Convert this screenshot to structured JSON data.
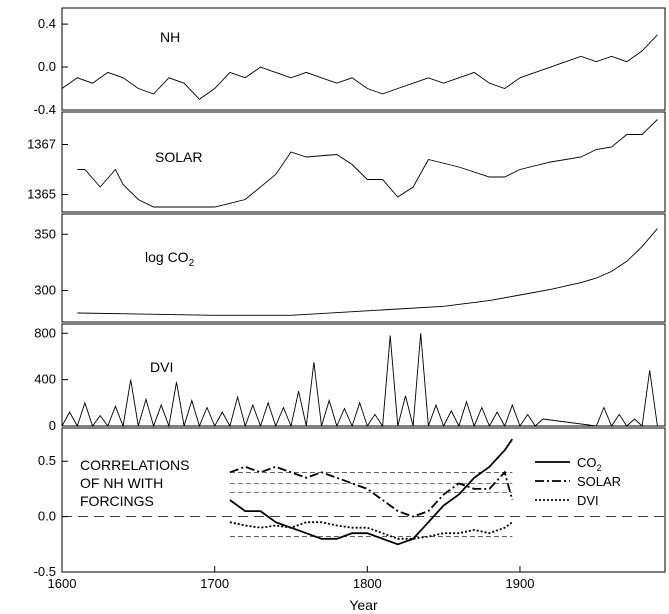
{
  "chart_data": [
    {
      "type": "line",
      "panel_label": "NH",
      "xlim": [
        1600,
        1995
      ],
      "ylim": [
        -0.4,
        0.55
      ],
      "yticks": [
        -0.4,
        0.0,
        0.4
      ],
      "ytick_labels": [
        "-0.4",
        "0.0",
        "0.4"
      ],
      "x": [
        1600,
        1610,
        1620,
        1630,
        1640,
        1650,
        1660,
        1670,
        1680,
        1690,
        1700,
        1710,
        1720,
        1730,
        1740,
        1750,
        1760,
        1770,
        1780,
        1790,
        1800,
        1810,
        1820,
        1830,
        1840,
        1850,
        1860,
        1870,
        1880,
        1890,
        1900,
        1910,
        1920,
        1930,
        1940,
        1950,
        1960,
        1970,
        1980,
        1990
      ],
      "y": [
        -0.2,
        -0.1,
        -0.15,
        -0.05,
        -0.1,
        -0.2,
        -0.25,
        -0.1,
        -0.15,
        -0.3,
        -0.2,
        -0.05,
        -0.1,
        0.0,
        -0.05,
        -0.1,
        -0.05,
        -0.1,
        -0.15,
        -0.1,
        -0.2,
        -0.25,
        -0.2,
        -0.15,
        -0.1,
        -0.15,
        -0.1,
        -0.05,
        -0.15,
        -0.2,
        -0.1,
        -0.05,
        0.0,
        0.05,
        0.1,
        0.05,
        0.1,
        0.05,
        0.15,
        0.3
      ]
    },
    {
      "type": "line",
      "panel_label": "SOLAR",
      "xlim": [
        1600,
        1995
      ],
      "ylim": [
        1364.3,
        1368.3
      ],
      "yticks": [
        1365,
        1367
      ],
      "ytick_labels": [
        "1365",
        "1367"
      ],
      "x": [
        1610,
        1615,
        1625,
        1635,
        1640,
        1650,
        1660,
        1670,
        1690,
        1700,
        1720,
        1740,
        1750,
        1760,
        1780,
        1790,
        1800,
        1810,
        1820,
        1830,
        1840,
        1860,
        1880,
        1890,
        1900,
        1920,
        1940,
        1950,
        1960,
        1970,
        1980,
        1990
      ],
      "y": [
        1366.0,
        1366.0,
        1365.3,
        1366.0,
        1365.4,
        1364.8,
        1364.5,
        1364.5,
        1364.5,
        1364.5,
        1364.8,
        1365.8,
        1366.7,
        1366.5,
        1366.6,
        1366.2,
        1365.6,
        1365.6,
        1364.9,
        1365.3,
        1366.4,
        1366.1,
        1365.7,
        1365.7,
        1366.0,
        1366.3,
        1366.5,
        1366.8,
        1366.9,
        1367.4,
        1367.4,
        1368.0
      ]
    },
    {
      "type": "line",
      "panel_label": "log CO",
      "panel_label_sub": "2",
      "xlim": [
        1600,
        1995
      ],
      "ylim": [
        272,
        368
      ],
      "yticks": [
        300,
        350
      ],
      "ytick_labels": [
        "300",
        "350"
      ],
      "x": [
        1610,
        1700,
        1750,
        1800,
        1850,
        1880,
        1900,
        1920,
        1940,
        1950,
        1960,
        1970,
        1980,
        1990
      ],
      "y": [
        280,
        278,
        278,
        282,
        286,
        291,
        296,
        301,
        307,
        311,
        317,
        326,
        339,
        355
      ]
    },
    {
      "type": "line",
      "panel_label": "DVI",
      "xlim": [
        1600,
        1995
      ],
      "ylim": [
        0,
        880
      ],
      "yticks": [
        0,
        400,
        800
      ],
      "ytick_labels": [
        "0",
        "400",
        "800"
      ],
      "x": [
        1600,
        1605,
        1610,
        1615,
        1620,
        1625,
        1630,
        1635,
        1640,
        1645,
        1650,
        1655,
        1660,
        1665,
        1670,
        1675,
        1680,
        1685,
        1690,
        1695,
        1700,
        1705,
        1710,
        1715,
        1720,
        1725,
        1730,
        1735,
        1740,
        1745,
        1750,
        1755,
        1760,
        1765,
        1770,
        1775,
        1780,
        1785,
        1790,
        1795,
        1800,
        1805,
        1810,
        1815,
        1820,
        1825,
        1830,
        1835,
        1840,
        1845,
        1850,
        1855,
        1860,
        1865,
        1870,
        1875,
        1880,
        1885,
        1890,
        1895,
        1900,
        1905,
        1910,
        1915,
        1950,
        1955,
        1960,
        1965,
        1970,
        1975,
        1980,
        1985,
        1990
      ],
      "y": [
        0,
        120,
        0,
        200,
        0,
        90,
        0,
        170,
        0,
        400,
        0,
        230,
        0,
        180,
        0,
        380,
        0,
        220,
        0,
        160,
        0,
        120,
        0,
        250,
        0,
        180,
        0,
        200,
        0,
        160,
        0,
        300,
        0,
        550,
        0,
        220,
        0,
        150,
        0,
        200,
        0,
        100,
        0,
        780,
        0,
        260,
        0,
        800,
        0,
        180,
        0,
        130,
        0,
        210,
        0,
        160,
        0,
        120,
        0,
        180,
        0,
        100,
        0,
        60,
        0,
        160,
        0,
        100,
        0,
        60,
        0,
        480,
        0
      ]
    },
    {
      "type": "line",
      "panel_label": "CORRELATIONS OF NH WITH FORCINGS",
      "panel_label_lines": [
        "CORRELATIONS",
        "OF NH WITH",
        "FORCINGS"
      ],
      "xlim": [
        1600,
        1995
      ],
      "ylim": [
        -0.5,
        0.8
      ],
      "yticks": [
        -0.5,
        0.0,
        0.5
      ],
      "ytick_labels": [
        "-0.5",
        "0.0",
        "0.5"
      ],
      "xticks": [
        1600,
        1700,
        1800,
        1900
      ],
      "xtick_labels": [
        "1600",
        "1700",
        "1800",
        "1900"
      ],
      "xlabel": "Year",
      "legend_position": "top-right",
      "legend": [
        {
          "label": "CO",
          "sub": "2",
          "style": "solid"
        },
        {
          "label": "SOLAR",
          "sub": "",
          "style": "dashdot"
        },
        {
          "label": "DVI",
          "sub": "",
          "style": "dotted"
        }
      ],
      "series": [
        {
          "style": "solid",
          "x": [
            1710,
            1720,
            1730,
            1740,
            1750,
            1760,
            1770,
            1780,
            1790,
            1800,
            1810,
            1820,
            1830,
            1840,
            1850,
            1860,
            1870,
            1880,
            1890,
            1895
          ],
          "y": [
            0.15,
            0.05,
            0.05,
            -0.05,
            -0.1,
            -0.15,
            -0.2,
            -0.2,
            -0.15,
            -0.15,
            -0.2,
            -0.25,
            -0.2,
            -0.05,
            0.1,
            0.2,
            0.35,
            0.45,
            0.6,
            0.7
          ]
        },
        {
          "style": "dashdot",
          "x": [
            1710,
            1720,
            1730,
            1740,
            1750,
            1760,
            1770,
            1780,
            1790,
            1800,
            1810,
            1820,
            1830,
            1840,
            1850,
            1860,
            1870,
            1880,
            1890,
            1895
          ],
          "y": [
            0.4,
            0.45,
            0.4,
            0.45,
            0.4,
            0.35,
            0.4,
            0.35,
            0.3,
            0.25,
            0.15,
            0.05,
            0.0,
            0.05,
            0.2,
            0.3,
            0.25,
            0.25,
            0.4,
            0.15
          ]
        },
        {
          "style": "dotted",
          "x": [
            1710,
            1720,
            1730,
            1740,
            1750,
            1760,
            1770,
            1780,
            1790,
            1800,
            1810,
            1820,
            1830,
            1840,
            1850,
            1860,
            1870,
            1880,
            1890,
            1895
          ],
          "y": [
            -0.05,
            -0.08,
            -0.1,
            -0.08,
            -0.1,
            -0.05,
            -0.05,
            -0.08,
            -0.1,
            -0.1,
            -0.15,
            -0.2,
            -0.2,
            -0.18,
            -0.15,
            -0.15,
            -0.12,
            -0.15,
            -0.1,
            -0.05
          ]
        }
      ],
      "reference_levels": [
        0.4,
        0.3,
        0.22,
        -0.18
      ]
    }
  ]
}
